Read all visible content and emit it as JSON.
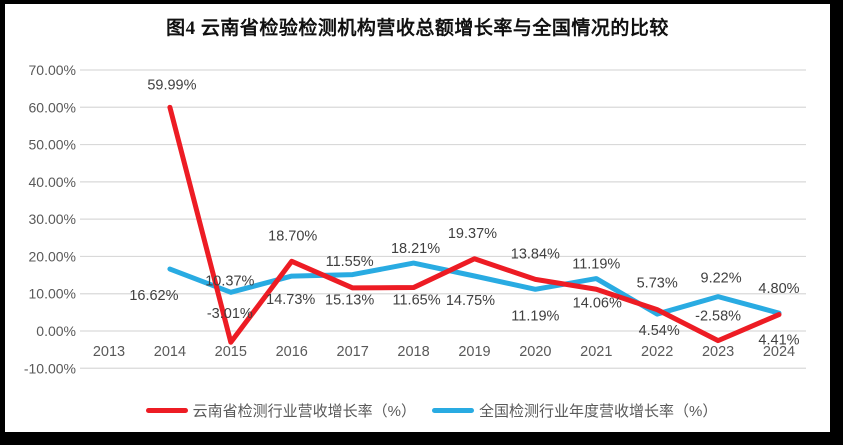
{
  "title": "图4 云南省检验检测机构营收总额增长率与全国情况的比较",
  "colors": {
    "yunnan_red": "#ed1c24",
    "national_blue": "#29abe2",
    "gridline": "#d9d9d9",
    "axis_text": "#595959",
    "label_text": "#404040",
    "frame": "#000000",
    "page_bg": "#ffffff"
  },
  "chart_data": {
    "type": "line",
    "title": "图4 云南省检验检测机构营收总额增长率与全国情况的比较",
    "categories": [
      "2013",
      "2014",
      "2015",
      "2016",
      "2017",
      "2018",
      "2019",
      "2020",
      "2021",
      "2022",
      "2023",
      "2024"
    ],
    "series": [
      {
        "name": "云南省检测行业营收增长率（%）",
        "color_key": "yunnan_red",
        "values": [
          null,
          59.99,
          -3.01,
          18.7,
          11.55,
          11.65,
          19.37,
          13.84,
          11.19,
          5.73,
          -2.58,
          4.41
        ],
        "label_dx": [
          0,
          2,
          -1,
          1,
          -3,
          3,
          -2,
          0,
          0,
          0,
          0,
          0
        ],
        "label_dy": [
          0,
          -22,
          -28,
          -25,
          -26,
          13,
          -25,
          -25,
          -25,
          -26,
          -24,
          26
        ]
      },
      {
        "name": "全国检测行业年度营收增长率（%）",
        "color_key": "national_blue",
        "values": [
          null,
          16.62,
          10.37,
          14.73,
          15.13,
          18.21,
          14.75,
          11.19,
          14.06,
          4.54,
          9.22,
          4.8
        ],
        "label_dx": [
          0,
          -16,
          -1,
          -1,
          -3,
          2,
          -4,
          0,
          1,
          2,
          3,
          0
        ],
        "label_dy": [
          0,
          27,
          -11,
          24,
          26,
          -14,
          25,
          27,
          25,
          17,
          -18,
          -24
        ]
      }
    ],
    "ylim": [
      -10,
      70
    ],
    "ytick_step": 10,
    "ytick_format": "0.00%",
    "grid": "horizontal",
    "legend_position": "bottom-center",
    "ytick_labels": [
      "-10.00%",
      "0.00%",
      "10.00%",
      "20.00%",
      "30.00%",
      "40.00%",
      "50.00%",
      "60.00%",
      "70.00%"
    ]
  },
  "legend": {
    "items": [
      {
        "label": "云南省检测行业营收增长率（%）"
      },
      {
        "label": "全国检测行业年度营收增长率（%）"
      }
    ]
  }
}
